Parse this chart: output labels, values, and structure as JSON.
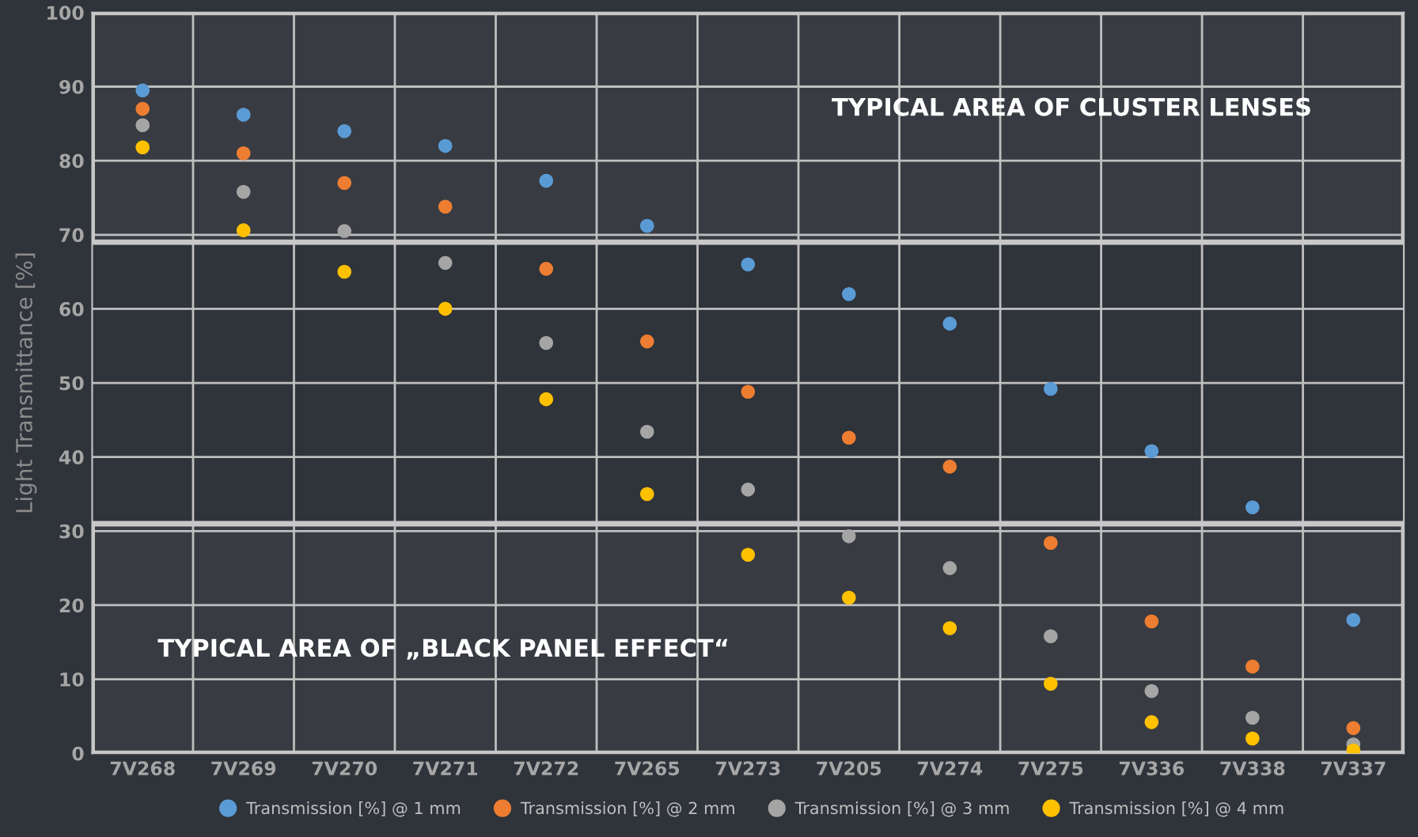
{
  "chart_data": {
    "type": "scatter",
    "ylabel": "Light Transmittance [%]",
    "categories": [
      "7V268",
      "7V269",
      "7V270",
      "7V271",
      "7V272",
      "7V265",
      "7V273",
      "7V205",
      "7V274",
      "7V275",
      "7V336",
      "7V338",
      "7V337"
    ],
    "series": [
      {
        "name": "Transmission [%] @ 1 mm",
        "color": "#5b9bd5",
        "values": [
          89.5,
          86.2,
          84.0,
          82.0,
          77.3,
          71.2,
          66.0,
          62.0,
          58.0,
          49.2,
          40.8,
          33.2,
          18.0
        ]
      },
      {
        "name": "Transmission [%] @ 2 mm",
        "color": "#ed7d31",
        "values": [
          87.0,
          81.0,
          77.0,
          73.8,
          65.4,
          55.6,
          48.8,
          42.6,
          38.7,
          28.4,
          17.8,
          11.7,
          3.4
        ]
      },
      {
        "name": "Transmission [%] @ 3 mm",
        "color": "#a5a5a5",
        "values": [
          84.8,
          75.8,
          70.5,
          66.2,
          55.4,
          43.4,
          35.6,
          29.3,
          25.0,
          15.8,
          8.4,
          4.8,
          1.2
        ]
      },
      {
        "name": "Transmission [%] @ 4 mm",
        "color": "#ffc000",
        "values": [
          81.8,
          70.6,
          65.0,
          60.0,
          47.8,
          35.0,
          26.8,
          21.0,
          16.9,
          9.4,
          4.2,
          2.0,
          0.4
        ]
      }
    ],
    "ylim": [
      0,
      100
    ],
    "yticks": [
      0,
      10,
      20,
      30,
      40,
      50,
      60,
      70,
      80,
      90,
      100
    ],
    "bands": [
      {
        "axis": "y",
        "from": 69,
        "to": 100,
        "label": "TYPICAL AREA OF CLUSTER LENSES",
        "color": "#c8c8c8"
      },
      {
        "axis": "y",
        "from": 0,
        "to": 31,
        "label": "TYPICAL AREA OF „BLACK PANEL EFFECT“",
        "color": "#c8c8c8"
      }
    ],
    "grid": true,
    "legend": "bottom",
    "marker": "circle"
  }
}
